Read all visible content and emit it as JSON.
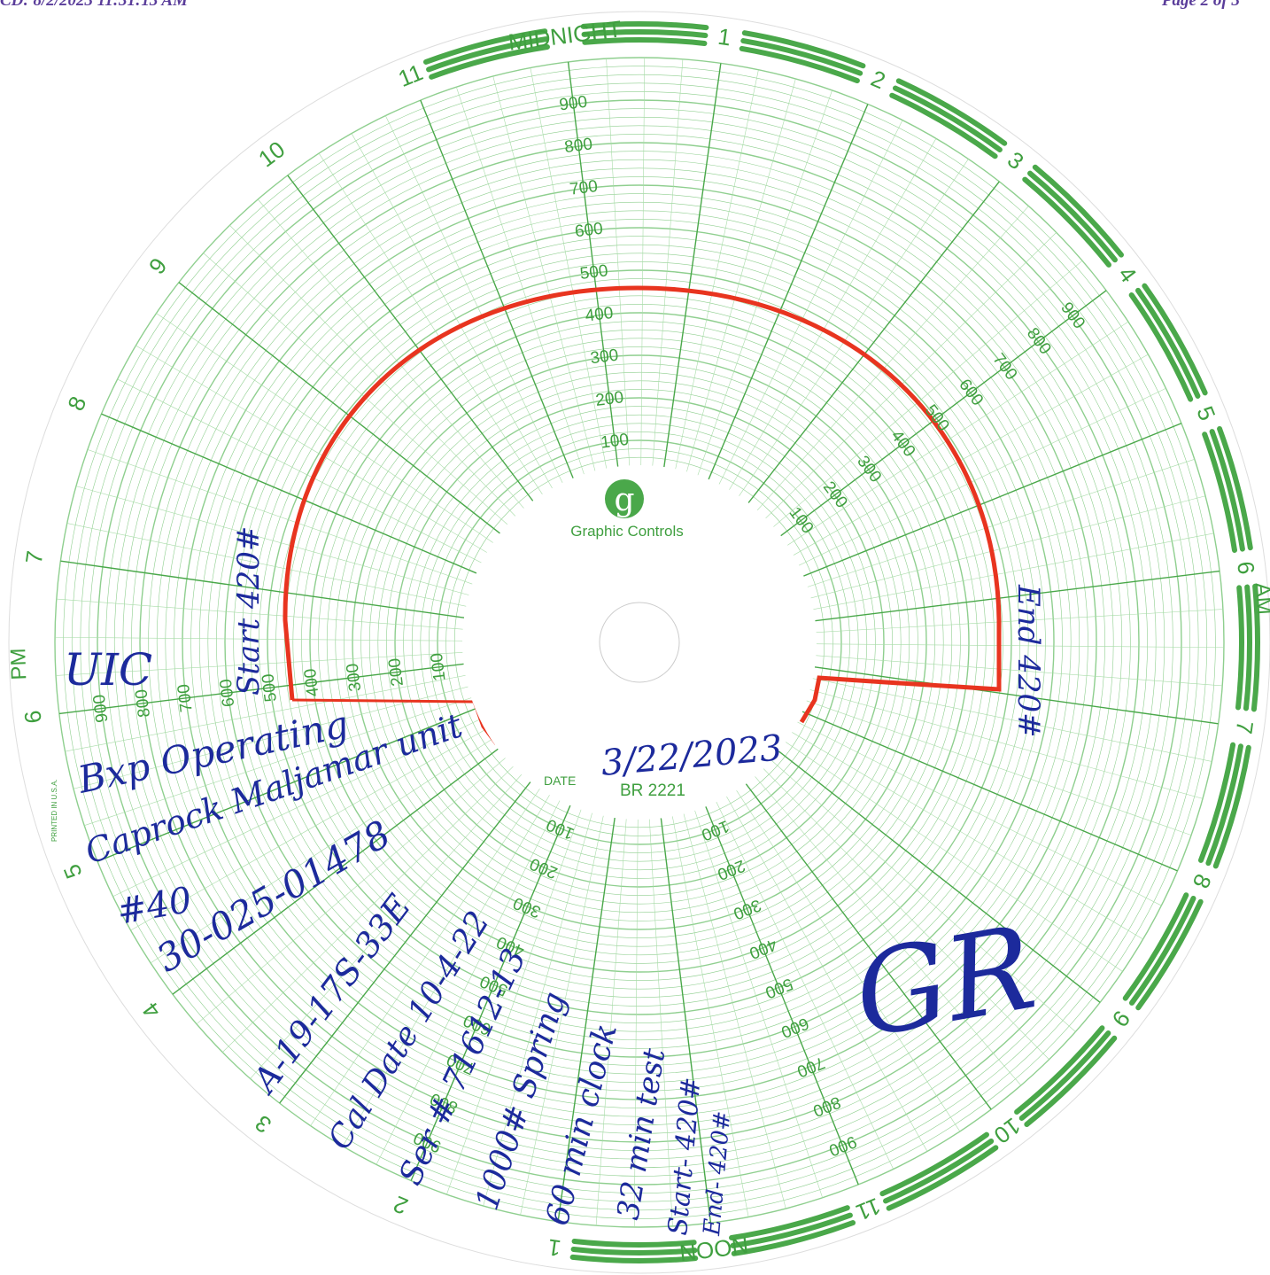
{
  "header": {
    "left": "CD: 8/2/2023 11:31:13 AM",
    "right": "Page 2 of 3"
  },
  "dial": {
    "hours": [
      "MIDNIGHT",
      "1",
      "2",
      "3",
      "4",
      "5",
      "6",
      "7",
      "8",
      "9",
      "10",
      "11",
      "NOON",
      "1",
      "2",
      "3",
      "4",
      "5",
      "6",
      "7",
      "8",
      "9",
      "10",
      "11"
    ],
    "am": "AM",
    "pm": "PM",
    "scale": [
      "100",
      "200",
      "300",
      "400",
      "500",
      "600",
      "700",
      "800",
      "900"
    ],
    "brand": "Graphic Controls",
    "logo": "g",
    "date_label": "DATE",
    "chart_no": "BR 2221",
    "printed": "PRINTED IN U.S.A."
  },
  "notes": {
    "start_side": "Start 420#",
    "end_side": "End 420#",
    "uic": "UIC",
    "operator": "Bxp Operating",
    "lease": "Caprock Maljamar unit",
    "well": "#40",
    "api": "30-025-01478",
    "location": "A-19-17S-33E",
    "cal_date": "Cal Date 10-4-22",
    "serial": "Ser # 71612-13",
    "spring": "1000# Spring",
    "clock": "60 min clock",
    "test": "32 min test",
    "start": "Start- 420#",
    "end": "End- 420#",
    "date": "3/22/2023",
    "initials": "GR"
  }
}
